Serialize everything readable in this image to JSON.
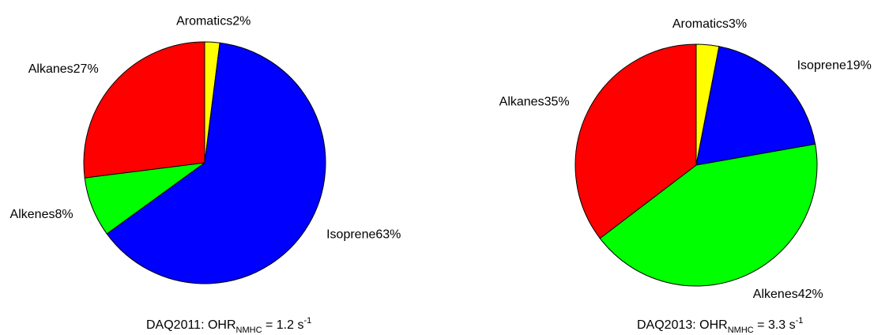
{
  "chart_data": [
    {
      "type": "pie",
      "caption": {
        "prefix": "DAQ2011:  OHR",
        "subscript": "NMHC",
        "middle": " = 1.2 s",
        "superscript": "-1"
      },
      "slices": [
        {
          "name": "Aromatics",
          "value": 2,
          "label": "Aromatics2%",
          "color": "#ffff00"
        },
        {
          "name": "Isoprene",
          "value": 63,
          "label": "Isoprene63%",
          "color": "#0000ff"
        },
        {
          "name": "Alkenes",
          "value": 8,
          "label": "Alkenes8%",
          "color": "#00ff00"
        },
        {
          "name": "Alkanes",
          "value": 27,
          "label": "Alkanes27%",
          "color": "#ff0000"
        }
      ]
    },
    {
      "type": "pie",
      "caption": {
        "prefix": "DAQ2013:  OHR",
        "subscript": "NMHC",
        "middle": " = 3.3 s",
        "superscript": "-1"
      },
      "slices": [
        {
          "name": "Aromatics",
          "value": 3,
          "label": "Aromatics3%",
          "color": "#ffff00"
        },
        {
          "name": "Isoprene",
          "value": 19,
          "label": "Isoprene19%",
          "color": "#0000ff"
        },
        {
          "name": "Alkenes",
          "value": 42,
          "label": "Alkenes42%",
          "color": "#00ff00"
        },
        {
          "name": "Alkanes",
          "value": 35,
          "label": "Alkanes35%",
          "color": "#ff0000"
        }
      ]
    }
  ]
}
